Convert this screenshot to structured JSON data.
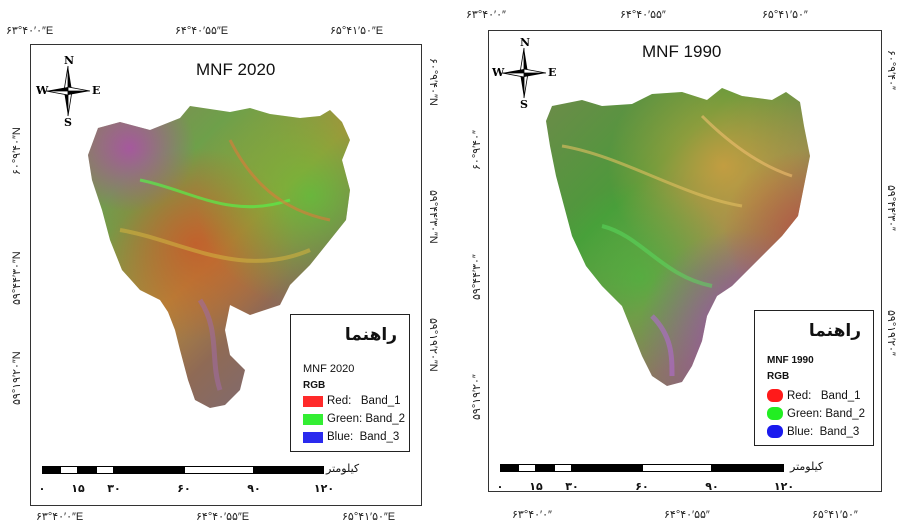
{
  "maps": [
    {
      "title": "MNF 2020",
      "top_coords": [
        "۶۳°۴۰′۰″E",
        "۶۴°۴۰′۵۵″E",
        "۶۵°۴۱′۵۰″E"
      ],
      "bottom_coords": [
        "۶۳°۴۰′۰″E",
        "۶۴°۴۰′۵۵″E",
        "۶۵°۴۱′۵۰″E"
      ],
      "left_coords": [
        "۶۰°۹′۴۰″N",
        "۵۹°۴۴′۳۰″N",
        "۵۹°۱۹′۲۰″N"
      ],
      "right_coords": [
        "۶۰°۹′۴۰″N",
        "۵۹°۴۴′۳۰″N",
        "۵۹°۱۹′۲۰″N"
      ],
      "north_arrow": {
        "n": "N",
        "s": "S",
        "e": "E",
        "w": "W"
      },
      "legend": {
        "title": "راهنما",
        "subtitle": "MNF 2020",
        "rgb": "RGB",
        "items": [
          {
            "channel": "Red:",
            "band": "Band_1",
            "color": "#ff2a2a"
          },
          {
            "channel": "Green:",
            "band": "Band_2",
            "color": "#33ee33"
          },
          {
            "channel": "Blue:",
            "band": "Band_3",
            "color": "#2a2aee"
          }
        ]
      },
      "scale": {
        "unit": "کیلومتر",
        "ticks": [
          "۰",
          "۱۵",
          "۳۰",
          "۶۰",
          "۹۰",
          "۱۲۰"
        ]
      }
    },
    {
      "title": "MNF 1990",
      "top_coords": [
        "۶۳°۴۰′۰″",
        "۶۴°۴۰′۵۵″",
        "۶۵°۴۱′۵۰″"
      ],
      "bottom_coords": [
        "۶۳°۴۰′۰″",
        "۶۴°۴۰′۵۵″",
        "۶۵°۴۱′۵۰″"
      ],
      "left_coords": [
        "۶۰°۹′۴۰″",
        "۵۹°۴۴′۳۰″",
        "۵۹°۱۹′۲۰″"
      ],
      "right_coords": [
        "۶۰°۹′۴۰″",
        "۵۹°۴۴′۳۰″",
        "۵۹°۱۹′۲۰″"
      ],
      "north_arrow": {
        "n": "N",
        "s": "S",
        "e": "E",
        "w": "W"
      },
      "legend": {
        "title": "راهنما",
        "subtitle": "MNF 1990",
        "rgb": "RGB",
        "items": [
          {
            "channel": "Red:",
            "band": "Band_1",
            "color": "#ff1a1a"
          },
          {
            "channel": "Green:",
            "band": "Band_2",
            "color": "#22ee22"
          },
          {
            "channel": "Blue:",
            "band": "Band_3",
            "color": "#1a1aee"
          }
        ]
      },
      "scale": {
        "unit": "کیلومتر",
        "ticks": [
          "۰",
          "۱۵",
          "۳۰",
          "۶۰",
          "۹۰",
          "۱۲۰"
        ]
      }
    }
  ]
}
